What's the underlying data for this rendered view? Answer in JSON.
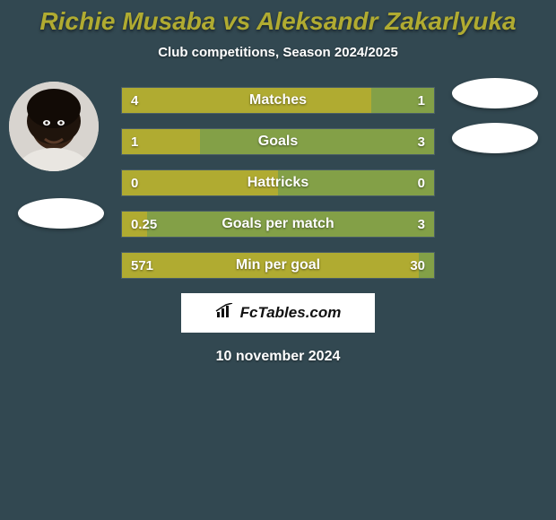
{
  "background_color": "#324851",
  "title": {
    "text": "Richie Musaba vs Aleksandr Zakarlyuka",
    "fontsize": 28,
    "color": "#b0ab31"
  },
  "subtitle": {
    "text": "Club competitions, Season 2024/2025",
    "fontsize": 15,
    "color": "#ffffff"
  },
  "colors": {
    "left_bar": "#b0ab31",
    "right_bar": "#83a047",
    "bar_label": "#ffffff",
    "value_label": "#ffffff"
  },
  "bar_fontsize": 16,
  "value_fontsize": 15,
  "bars": [
    {
      "label": "Matches",
      "left_value": "4",
      "right_value": "1",
      "left_pct": 80,
      "right_pct": 20
    },
    {
      "label": "Goals",
      "left_value": "1",
      "right_value": "3",
      "left_pct": 25,
      "right_pct": 75
    },
    {
      "label": "Hattricks",
      "left_value": "0",
      "right_value": "0",
      "left_pct": 50,
      "right_pct": 50
    },
    {
      "label": "Goals per match",
      "left_value": "0.25",
      "right_value": "3",
      "left_pct": 8,
      "right_pct": 92
    },
    {
      "label": "Min per goal",
      "left_value": "571",
      "right_value": "30",
      "left_pct": 95,
      "right_pct": 5
    }
  ],
  "branding": {
    "text": "FcTables.com",
    "fontsize": 17
  },
  "date": {
    "text": "10 november 2024",
    "fontsize": 16
  }
}
